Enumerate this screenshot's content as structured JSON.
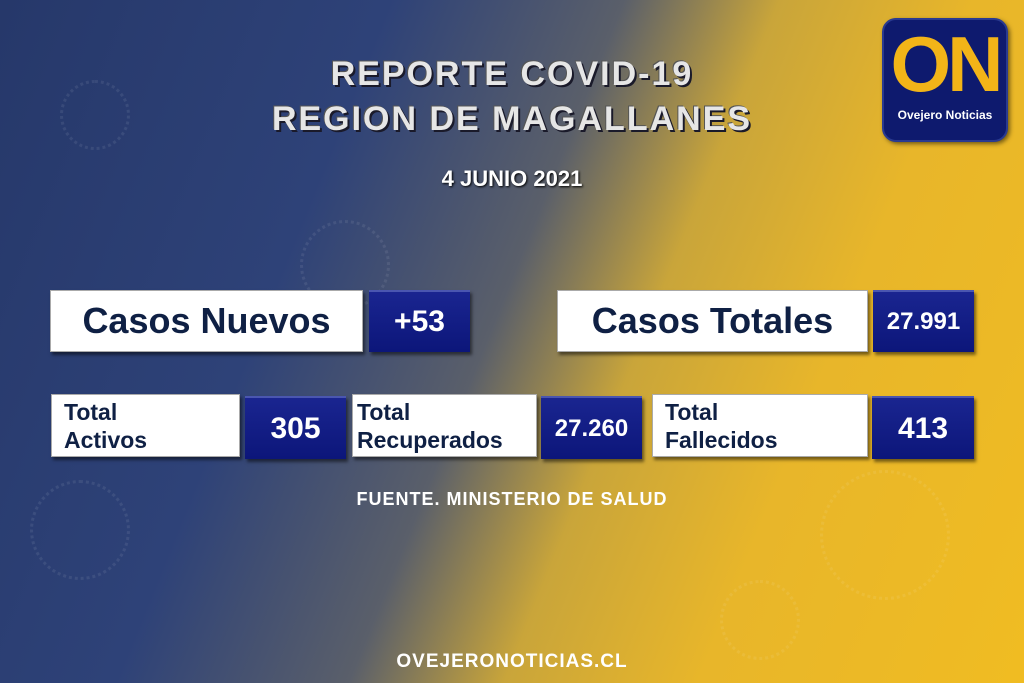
{
  "header": {
    "title_line1": "REPORTE COVID-19",
    "title_line2": "REGION DE MAGALLANES",
    "date": "4 JUNIO 2021"
  },
  "logo": {
    "letters": "ON",
    "name": "Ovejero Noticias"
  },
  "stats": {
    "casos_nuevos": {
      "label": "Casos Nuevos",
      "value": "+53"
    },
    "casos_totales": {
      "label": "Casos Totales",
      "value": "27.991"
    },
    "activos": {
      "label1": "Total",
      "label2": "Activos",
      "value": "305"
    },
    "recuperados": {
      "label1": "Total",
      "label2": "Recuperados",
      "value": "27.260"
    },
    "fallecidos": {
      "label1": "Total",
      "label2": "Fallecidos",
      "value": "413"
    }
  },
  "source": "FUENTE. MINISTERIO DE SALUD",
  "footer": "OVEJERONOTICIAS.CL",
  "colors": {
    "navy": "#0c167a",
    "gold": "#f2b418",
    "label_text": "#0f2044"
  }
}
